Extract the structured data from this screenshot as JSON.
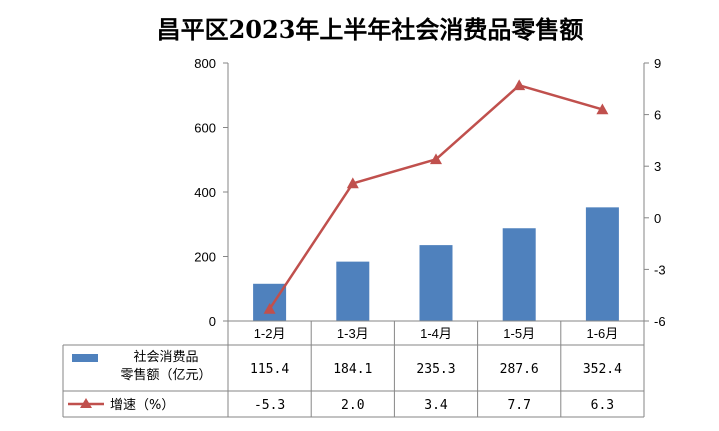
{
  "chart_data": {
    "type": "bar",
    "title": "昌平区2023年上半年社会消费品零售额",
    "categories": [
      "1-2月",
      "1-3月",
      "1-4月",
      "1-5月",
      "1-6月"
    ],
    "series": [
      {
        "name": "社会消费品零售额（亿元）",
        "name_lines": [
          "社会消费品",
          "零售额（亿元）"
        ],
        "type": "bar",
        "axis": "left",
        "color": "#4f81bd",
        "values": [
          115.4,
          184.1,
          235.3,
          287.6,
          352.4
        ]
      },
      {
        "name": "增速（%）",
        "type": "line",
        "axis": "right",
        "color": "#c0504d",
        "values": [
          -5.3,
          2.0,
          3.4,
          7.7,
          6.3
        ]
      }
    ],
    "table_values": [
      [
        "115.4",
        "184.1",
        "235.3",
        "287.6",
        "352.4"
      ],
      [
        "-5.3",
        "2.0",
        "3.4",
        "7.7",
        "6.3"
      ]
    ],
    "ylim": [
      0,
      800
    ],
    "yticks": [
      "0",
      "200",
      "400",
      "600",
      "800"
    ],
    "y2lim": [
      -6,
      9
    ],
    "y2ticks": [
      "-6",
      "-3",
      "0",
      "3",
      "6",
      "9"
    ],
    "grid": false,
    "legend": "data-table"
  }
}
